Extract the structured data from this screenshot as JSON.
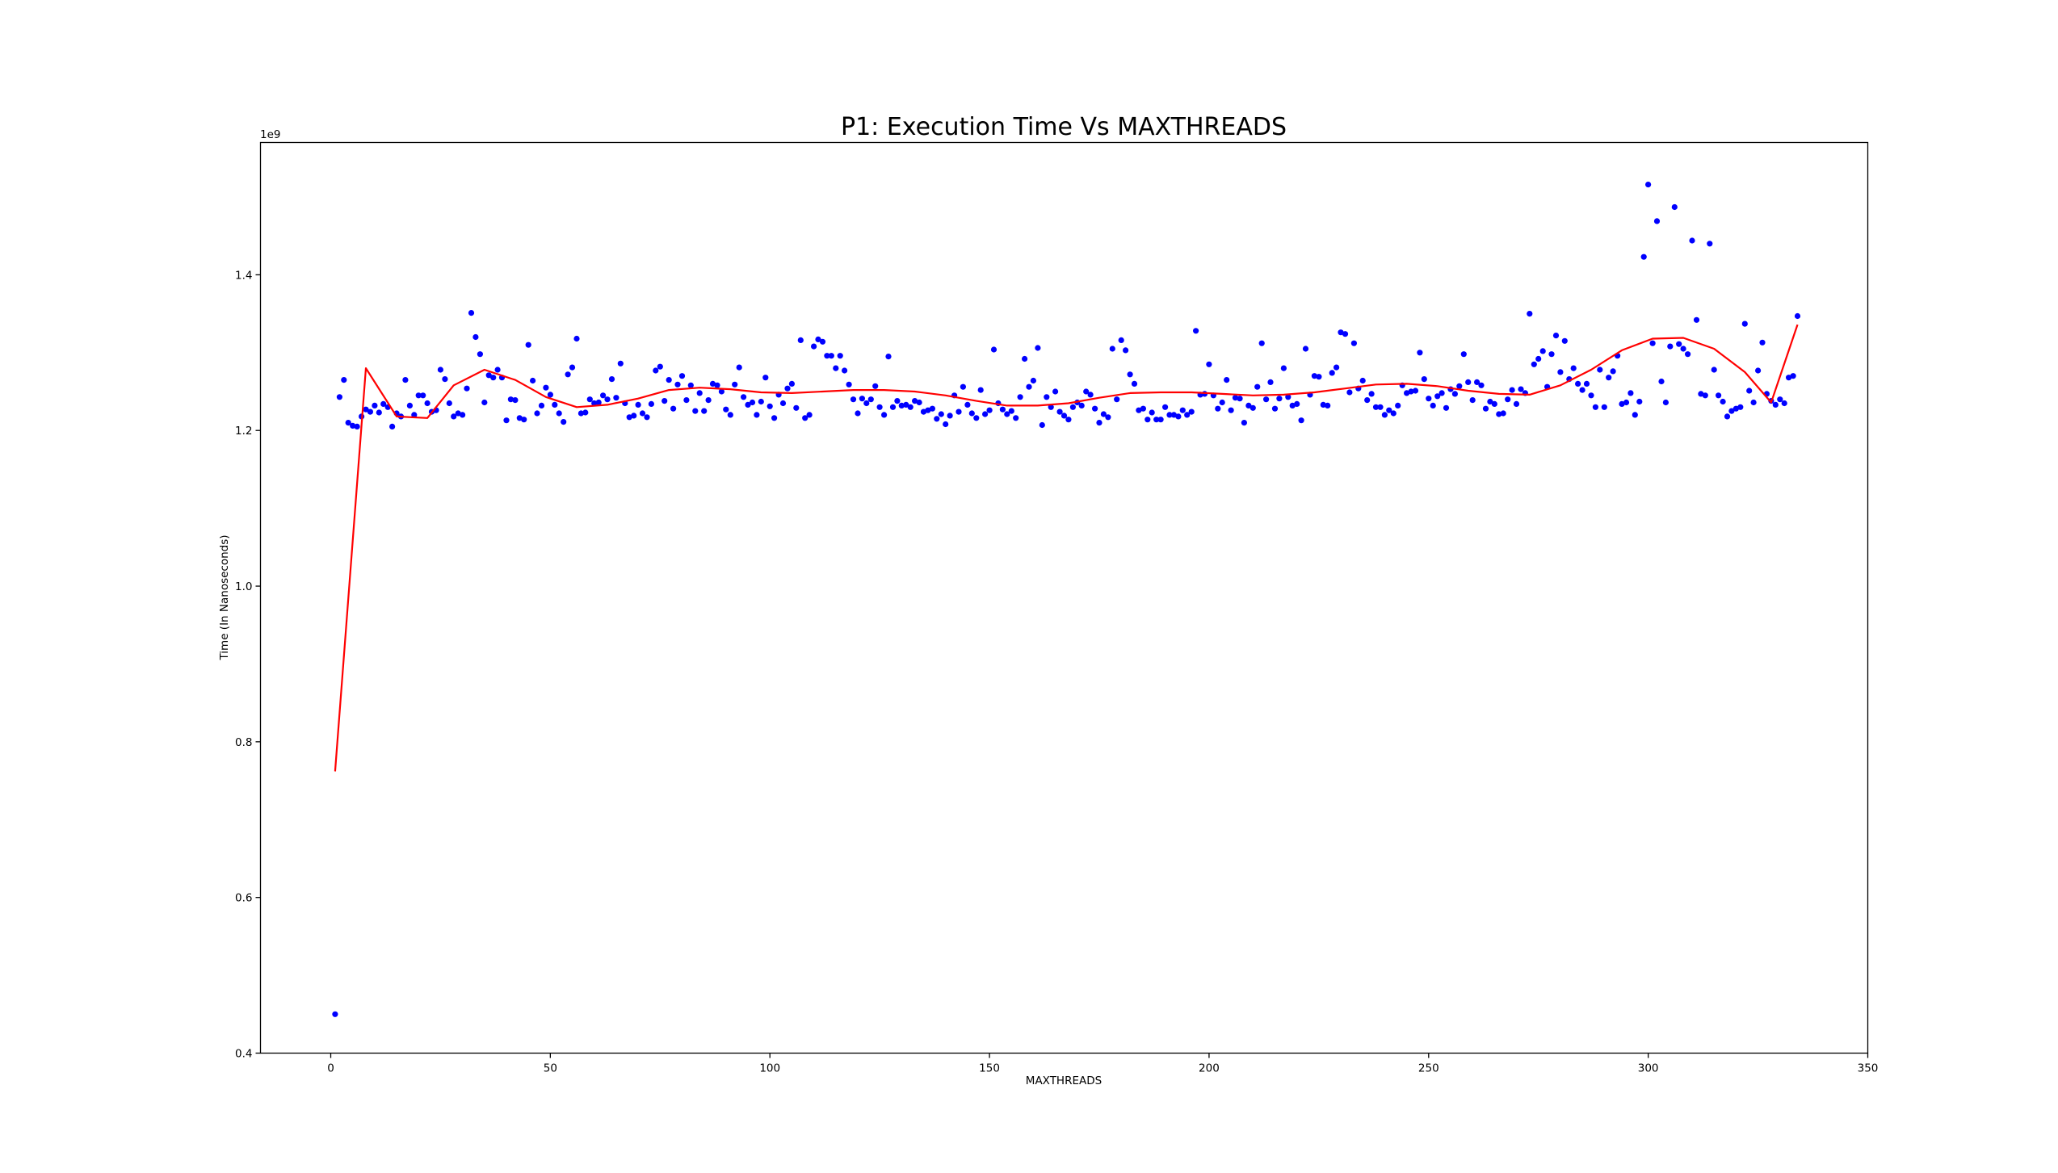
{
  "chart_data": {
    "type": "scatter",
    "title": "P1: Execution Time Vs MAXTHREADS",
    "xlabel": "MAXTHREADS",
    "ylabel": "Time (In Nanoseconds)",
    "y_offset_label": "1e9",
    "xlim": [
      -16,
      350
    ],
    "ylim": [
      0.4,
      1.57
    ],
    "xticks": [
      0,
      50,
      100,
      150,
      200,
      250,
      300,
      350
    ],
    "yticks": [
      0.4,
      0.6,
      0.8,
      1.0,
      1.2,
      1.4
    ],
    "ytick_labels": [
      "0.4",
      "0.6",
      "0.8",
      "1.0",
      "1.2",
      "1.4"
    ],
    "grid": false,
    "legend": "none",
    "colors": {
      "points": "#0000ff",
      "trend": "#ff0000"
    },
    "series": [
      {
        "kind": "points",
        "x": [
          1,
          2,
          3,
          4,
          5,
          6,
          7,
          8,
          9,
          10,
          11,
          12,
          13,
          14,
          15,
          16,
          17,
          18,
          19,
          20,
          21,
          22,
          23,
          24,
          25,
          26,
          27,
          28,
          29,
          30,
          31,
          32,
          33,
          34,
          35,
          36,
          37,
          38,
          39,
          40,
          41,
          42,
          43,
          44,
          45,
          46,
          47,
          48,
          49,
          50,
          51,
          52,
          53,
          54,
          55,
          56,
          57,
          58,
          59,
          60,
          61,
          62,
          63,
          64,
          65,
          66,
          67,
          68,
          69,
          70,
          71,
          72,
          73,
          74,
          75,
          76,
          77,
          78,
          79,
          80,
          81,
          82,
          83,
          84,
          85,
          86,
          87,
          88,
          89,
          90,
          91,
          92,
          93,
          94,
          95,
          96,
          97,
          98,
          99,
          100,
          101,
          102,
          103,
          104,
          105,
          106,
          107,
          108,
          109,
          110,
          111,
          112,
          113,
          114,
          115,
          116,
          117,
          118,
          119,
          120,
          121,
          122,
          123,
          124,
          125,
          126,
          127,
          128,
          129,
          130,
          131,
          132,
          133,
          134,
          135,
          136,
          137,
          138,
          139,
          140,
          141,
          142,
          143,
          144,
          145,
          146,
          147,
          148,
          149,
          150,
          151,
          152,
          153,
          154,
          155,
          156,
          157,
          158,
          159,
          160,
          161,
          162,
          163,
          164,
          165,
          166,
          167,
          168,
          169,
          170,
          171,
          172,
          173,
          174,
          175,
          176,
          177,
          178,
          179,
          180,
          181,
          182,
          183,
          184,
          185,
          186,
          187,
          188,
          189,
          190,
          191,
          192,
          193,
          194,
          195,
          196,
          197,
          198,
          199,
          200,
          201,
          202,
          203,
          204,
          205,
          206,
          207,
          208,
          209,
          210,
          211,
          212,
          213,
          214,
          215,
          216,
          217,
          218,
          219,
          220,
          221,
          222,
          223,
          224,
          225,
          226,
          227,
          228,
          229,
          230,
          231,
          232,
          233,
          234,
          235,
          236,
          237,
          238,
          239,
          240,
          241,
          242,
          243,
          244,
          245,
          246,
          247,
          248,
          249,
          250,
          251,
          252,
          253,
          254,
          255,
          256,
          257,
          258,
          259,
          260,
          261,
          262,
          263,
          264,
          265,
          266,
          267,
          268,
          269,
          270,
          271,
          272,
          273,
          274,
          275,
          276,
          277,
          278,
          279,
          280,
          281,
          282,
          283,
          284,
          285,
          286,
          287,
          288,
          289,
          290,
          291,
          292,
          293,
          294,
          295,
          296,
          297,
          298,
          299,
          300,
          301,
          302,
          303,
          304,
          305,
          306,
          307,
          308,
          309,
          310,
          311,
          312,
          313,
          314,
          315,
          316,
          317,
          318,
          319,
          320,
          321,
          322,
          323,
          324,
          325,
          326,
          327,
          328,
          329,
          330,
          331,
          332,
          333,
          334
        ],
        "y": [
          0.45,
          1.243,
          1.265,
          1.21,
          1.206,
          1.205,
          1.218,
          1.227,
          1.224,
          1.232,
          1.223,
          1.234,
          1.23,
          1.205,
          1.222,
          1.218,
          1.265,
          1.232,
          1.22,
          1.245,
          1.245,
          1.235,
          1.224,
          1.226,
          1.278,
          1.266,
          1.235,
          1.218,
          1.222,
          1.22,
          1.254,
          1.351,
          1.32,
          1.298,
          1.236,
          1.271,
          1.268,
          1.278,
          1.268,
          1.213,
          1.24,
          1.239,
          1.216,
          1.214,
          1.31,
          1.264,
          1.222,
          1.232,
          1.255,
          1.246,
          1.233,
          1.222,
          1.211,
          1.272,
          1.281,
          1.318,
          1.222,
          1.223,
          1.24,
          1.235,
          1.236,
          1.245,
          1.24,
          1.266,
          1.242,
          1.286,
          1.235,
          1.217,
          1.219,
          1.233,
          1.222,
          1.217,
          1.234,
          1.277,
          1.282,
          1.238,
          1.265,
          1.228,
          1.259,
          1.27,
          1.239,
          1.258,
          1.225,
          1.248,
          1.225,
          1.239,
          1.26,
          1.258,
          1.25,
          1.227,
          1.22,
          1.259,
          1.281,
          1.243,
          1.233,
          1.236,
          1.22,
          1.237,
          1.268,
          1.231,
          1.216,
          1.246,
          1.235,
          1.254,
          1.26,
          1.229,
          1.316,
          1.216,
          1.22,
          1.308,
          1.317,
          1.314,
          1.296,
          1.296,
          1.28,
          1.296,
          1.277,
          1.259,
          1.24,
          1.222,
          1.241,
          1.235,
          1.24,
          1.257,
          1.23,
          1.22,
          1.295,
          1.23,
          1.238,
          1.232,
          1.233,
          1.23,
          1.238,
          1.236,
          1.224,
          1.226,
          1.228,
          1.215,
          1.221,
          1.208,
          1.219,
          1.245,
          1.224,
          1.256,
          1.233,
          1.222,
          1.216,
          1.252,
          1.221,
          1.226,
          1.304,
          1.235,
          1.227,
          1.221,
          1.225,
          1.216,
          1.243,
          1.292,
          1.256,
          1.264,
          1.306,
          1.207,
          1.243,
          1.23,
          1.25,
          1.224,
          1.219,
          1.214,
          1.23,
          1.236,
          1.232,
          1.25,
          1.246,
          1.228,
          1.21,
          1.221,
          1.217,
          1.305,
          1.24,
          1.316,
          1.303,
          1.272,
          1.26,
          1.226,
          1.228,
          1.214,
          1.223,
          1.214,
          1.214,
          1.23,
          1.22,
          1.22,
          1.218,
          1.226,
          1.22,
          1.224,
          1.328,
          1.246,
          1.247,
          1.285,
          1.245,
          1.228,
          1.236,
          1.265,
          1.226,
          1.242,
          1.241,
          1.21,
          1.232,
          1.229,
          1.256,
          1.312,
          1.24,
          1.262,
          1.228,
          1.241,
          1.28,
          1.243,
          1.232,
          1.234,
          1.213,
          1.305,
          1.246,
          1.27,
          1.269,
          1.233,
          1.232,
          1.274,
          1.281,
          1.326,
          1.324,
          1.249,
          1.312,
          1.254,
          1.264,
          1.239,
          1.247,
          1.23,
          1.23,
          1.22,
          1.226,
          1.222,
          1.232,
          1.258,
          1.248,
          1.25,
          1.251,
          1.3,
          1.266,
          1.241,
          1.232,
          1.244,
          1.248,
          1.229,
          1.253,
          1.247,
          1.257,
          1.298,
          1.262,
          1.239,
          1.262,
          1.258,
          1.228,
          1.237,
          1.234,
          1.221,
          1.222,
          1.24,
          1.252,
          1.234,
          1.253,
          1.248,
          1.35,
          1.285,
          1.292,
          1.302,
          1.256,
          1.298,
          1.322,
          1.275,
          1.315,
          1.266,
          1.28,
          1.26,
          1.252,
          1.26,
          1.245,
          1.23,
          1.278,
          1.23,
          1.268,
          1.276,
          1.296,
          1.234,
          1.236,
          1.248,
          1.22,
          1.237,
          1.423,
          1.516,
          1.312,
          1.469,
          1.263,
          1.236,
          1.308,
          1.487,
          1.311,
          1.305,
          1.298,
          1.444,
          1.342,
          1.247,
          1.245,
          1.44,
          1.278,
          1.245,
          1.237,
          1.218,
          1.225,
          1.228,
          1.23,
          1.337,
          1.251,
          1.236,
          1.277,
          1.313,
          1.247,
          1.238,
          1.233,
          1.24,
          1.235,
          1.268,
          1.27,
          1.347
        ]
      },
      {
        "kind": "line",
        "x": [
          1,
          8,
          15,
          22,
          28,
          35,
          42,
          49,
          56,
          63,
          70,
          77,
          84,
          91,
          98,
          105,
          112,
          119,
          126,
          133,
          140,
          147,
          154,
          161,
          168,
          175,
          182,
          189,
          196,
          203,
          210,
          217,
          224,
          231,
          238,
          245,
          252,
          259,
          266,
          273,
          280,
          287,
          294,
          301,
          308,
          315,
          322,
          328,
          334
        ],
        "y": [
          0.762,
          1.28,
          1.218,
          1.216,
          1.258,
          1.278,
          1.265,
          1.243,
          1.23,
          1.233,
          1.241,
          1.252,
          1.255,
          1.253,
          1.249,
          1.248,
          1.25,
          1.252,
          1.252,
          1.25,
          1.245,
          1.238,
          1.232,
          1.232,
          1.235,
          1.242,
          1.248,
          1.249,
          1.249,
          1.247,
          1.245,
          1.246,
          1.249,
          1.254,
          1.259,
          1.26,
          1.257,
          1.251,
          1.247,
          1.246,
          1.258,
          1.278,
          1.303,
          1.318,
          1.319,
          1.305,
          1.275,
          1.236,
          1.336
        ]
      }
    ]
  }
}
